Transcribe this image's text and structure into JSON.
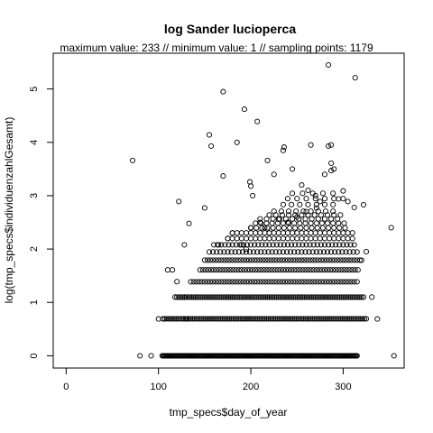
{
  "chart_data": {
    "type": "scatter",
    "title": "log Sander lucioperca",
    "subtitle": "maximum value: 233  //  minimum value: 1  // sampling points: 1179",
    "xlabel": "tmp_specs$day_of_year",
    "ylabel": "log(tmp_specs$individuenzahlGesamt)",
    "xlim": [
      -14,
      366
    ],
    "ylim": [
      -0.23,
      5.67
    ],
    "xticks": [
      "0",
      "100",
      "200",
      "300"
    ],
    "yticks": [
      "0",
      "1",
      "2",
      "3",
      "4",
      "5"
    ],
    "marker": "open-circle",
    "points": [
      [
        72,
        3.66
      ],
      [
        80,
        0
      ],
      [
        92,
        0
      ],
      [
        170,
        4.95
      ],
      [
        193,
        4.62
      ],
      [
        155,
        4.14
      ],
      [
        157,
        3.93
      ],
      [
        185,
        4.0
      ],
      [
        207,
        4.39
      ],
      [
        218,
        3.66
      ],
      [
        122,
        2.89
      ],
      [
        150,
        2.77
      ],
      [
        133,
        2.48
      ],
      [
        128,
        2.08
      ],
      [
        170,
        3.37
      ],
      [
        199,
        3.26
      ],
      [
        200,
        3.18
      ],
      [
        202,
        3.0
      ],
      [
        284,
        5.45
      ],
      [
        313,
        5.21
      ],
      [
        235,
        3.85
      ],
      [
        236,
        3.91
      ],
      [
        245,
        3.5
      ],
      [
        265,
        3.95
      ],
      [
        284,
        3.93
      ],
      [
        287,
        3.95
      ],
      [
        287,
        3.61
      ],
      [
        287,
        3.47
      ],
      [
        290,
        3.5
      ],
      [
        225,
        3.4
      ],
      [
        255,
        3.2
      ],
      [
        262,
        3.1
      ],
      [
        270,
        3.0
      ],
      [
        280,
        3.4
      ],
      [
        300,
        3.09
      ],
      [
        295,
        2.94
      ],
      [
        275,
        2.89
      ],
      [
        305,
        2.89
      ],
      [
        322,
        2.83
      ],
      [
        312,
        2.78
      ],
      [
        271,
        2.77
      ],
      [
        260,
        2.7
      ],
      [
        250,
        2.6
      ],
      [
        240,
        2.5
      ],
      [
        230,
        2.56
      ],
      [
        220,
        2.3
      ],
      [
        180,
        2.3
      ],
      [
        175,
        2.2
      ],
      [
        190,
        2.08
      ],
      [
        165,
        2.08
      ],
      [
        195,
        2.0
      ],
      [
        200,
        2.4
      ],
      [
        210,
        2.5
      ],
      [
        215,
        2.4
      ],
      [
        352,
        2.4
      ],
      [
        355,
        0
      ],
      [
        331,
        1.1
      ],
      [
        337,
        0.69
      ],
      [
        325,
        1.95
      ],
      [
        320,
        1.79
      ],
      [
        110,
        1.61
      ],
      [
        115,
        1.61
      ],
      [
        120,
        1.39
      ],
      [
        118,
        1.1
      ],
      [
        128,
        1.1
      ],
      [
        130,
        0.69
      ],
      [
        105,
        0.69
      ],
      [
        100,
        0.69
      ]
    ]
  }
}
